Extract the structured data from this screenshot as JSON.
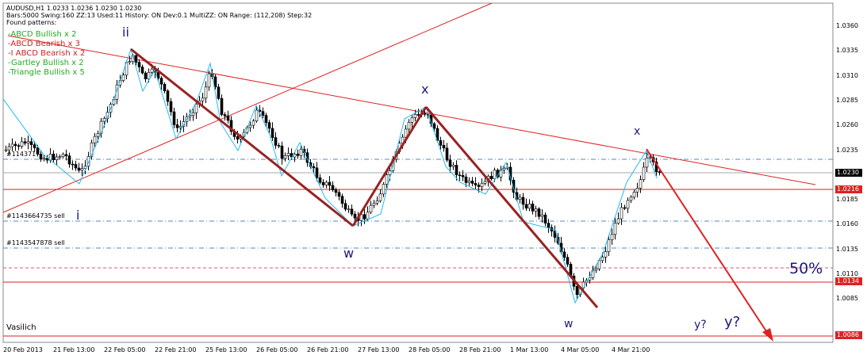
{
  "header": {
    "symbol_line": "AUDUSD,H1  1.0233 1.0236 1.0230 1.0230",
    "settings_line": "Bars:5000  Swing:160  ZZ:13  Used:11  History: ON Dev:0.1  MultiZZ: ON  Range: (112,208)  Step:32",
    "found_title": "Found patterns:"
  },
  "patterns": [
    {
      "text": "-ABCD Bullish x 2",
      "color": "#22aa22"
    },
    {
      "text": "-ABCD Bearish x 3",
      "color": "#cc2222"
    },
    {
      "text": "-I ABCD Bearish x 2",
      "color": "#cc2222"
    },
    {
      "text": "-Gartley Bullish x 2",
      "color": "#22aa22"
    },
    {
      "text": "-Triangle Bullish x 5",
      "color": "#22aa22"
    }
  ],
  "wave_labels": {
    "ii": "ii",
    "i": "i",
    "w1": "w",
    "x1": "x",
    "w2": "w",
    "x2": "x",
    "y_small": "y?",
    "y_big": "y?",
    "fifty": "50%"
  },
  "order_labels": {
    "order1": "#1143717",
    "order2": "#1143664735 sell",
    "order3": "#1143547878 sell"
  },
  "watermark": "Vasilich",
  "price_axis": {
    "ticks": [
      "1.0360",
      "1.0335",
      "1.0310",
      "1.0285",
      "1.0260",
      "1.0235",
      "1.0210",
      "1.0185",
      "1.0160",
      "1.0135",
      "1.0110",
      "1.0085"
    ],
    "tags": [
      {
        "text": "1.0230",
        "bg": "#000000"
      },
      {
        "text": "1.0216",
        "bg": "#dd2222"
      },
      {
        "text": "1.0134",
        "bg": "#dd2222"
      },
      {
        "text": "1.0086",
        "bg": "#dd2222"
      }
    ]
  },
  "time_axis": [
    "20 Feb 2013",
    "21 Feb 13:00",
    "22 Feb 05:00",
    "22 Feb 21:00",
    "25 Feb 13:00",
    "26 Feb 05:00",
    "26 Feb 21:00",
    "27 Feb 13:00",
    "28 Feb 05:00",
    "28 Feb 21:00",
    "1 Mar 13:00",
    "4 Mar 05:00",
    "4 Mar 21:00"
  ],
  "colors": {
    "up_candle": "#ffffff",
    "down_candle": "#000000",
    "trend_line": "#dd2222",
    "wave_line": "#992222",
    "zigzag": "#22bbee",
    "level_line": "#5588bb",
    "wave_label": "#1a1a7a"
  }
}
